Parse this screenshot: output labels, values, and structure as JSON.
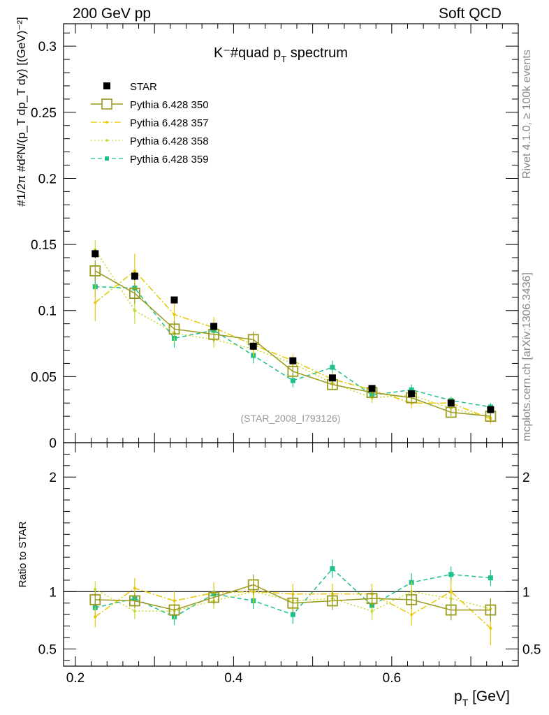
{
  "header": {
    "left": "200 GeV pp",
    "right": "Soft QCD"
  },
  "side": {
    "rivet": "Rivet 4.1.0, ≥ 100k events",
    "mcplots": "mcplots.cern.ch [arXiv:1306.3436]"
  },
  "chart_data": {
    "type": "scatter",
    "title": "K⁻#quad p",
    "title_sub": "T",
    "title_end": " spectrum",
    "watermark": "(STAR_2008_I793126)",
    "ylabel_upper": "#1/2π #d²N/(p_T dp_T dy) [(GeV)⁻²]",
    "ylabel_lower": "Ratio to STAR",
    "xlabel": "p",
    "xlabel_sub": "T",
    "xlabel_end": " [GeV]",
    "xlim": [
      0.185,
      0.76
    ],
    "ylim_upper": [
      0,
      0.317
    ],
    "ylim_lower": [
      0.35,
      2.3
    ],
    "x_ticks": [
      "0.2",
      "0.4",
      "0.6"
    ],
    "y_ticks_upper": [
      "0",
      "0.05",
      "0.1",
      "0.15",
      "0.2",
      "0.25",
      "0.3"
    ],
    "y_ticks_lower": [
      "0.5",
      "1",
      "2"
    ],
    "x": [
      0.225,
      0.275,
      0.325,
      0.375,
      0.425,
      0.475,
      0.525,
      0.575,
      0.625,
      0.675,
      0.725
    ],
    "star": {
      "name": "STAR",
      "color": "#000000",
      "values": [
        0.143,
        0.126,
        0.108,
        0.088,
        0.073,
        0.062,
        0.049,
        0.041,
        0.037,
        0.03,
        0.025
      ],
      "errors": [
        0.003,
        0.003,
        0.002,
        0.002,
        0.002,
        0.002,
        0.002,
        0.002,
        0.001,
        0.001,
        0.001
      ]
    },
    "series": [
      {
        "name": "Pythia 6.428 350",
        "color": "#9a9a1e",
        "dash": "",
        "marker": "open-square",
        "values": [
          0.13,
          0.113,
          0.086,
          0.082,
          0.078,
          0.054,
          0.044,
          0.038,
          0.034,
          0.023,
          0.02
        ],
        "errors": [
          0.008,
          0.008,
          0.006,
          0.006,
          0.006,
          0.005,
          0.004,
          0.003,
          0.003,
          0.003,
          0.003
        ],
        "ratio": [
          0.93,
          0.92,
          0.84,
          0.95,
          1.06,
          0.9,
          0.92,
          0.94,
          0.93,
          0.84,
          0.84
        ],
        "ratio_err": [
          0.06,
          0.06,
          0.05,
          0.06,
          0.09,
          0.08,
          0.08,
          0.08,
          0.08,
          0.09,
          0.1
        ]
      },
      {
        "name": "Pythia 6.428 357",
        "color": "#e6c800",
        "dash": "9,3,2,3",
        "marker": "small-dot",
        "values": [
          0.106,
          0.13,
          0.097,
          0.087,
          0.074,
          0.062,
          0.048,
          0.04,
          0.03,
          0.03,
          0.018
        ],
        "errors": [
          0.014,
          0.013,
          0.009,
          0.008,
          0.008,
          0.005,
          0.005,
          0.004,
          0.004,
          0.004,
          0.004
        ],
        "ratio": [
          0.78,
          1.03,
          0.92,
          0.99,
          1.0,
          0.98,
          0.98,
          0.98,
          0.8,
          1.0,
          0.68
        ],
        "ratio_err": [
          0.09,
          0.09,
          0.08,
          0.09,
          0.1,
          0.09,
          0.09,
          0.09,
          0.1,
          0.11,
          0.15
        ]
      },
      {
        "name": "Pythia 6.428 358",
        "color": "#c9d82a",
        "dash": "2,3",
        "marker": "small-dot",
        "values": [
          0.146,
          0.1,
          0.083,
          0.078,
          0.071,
          0.06,
          0.045,
          0.034,
          0.036,
          0.026,
          0.019
        ],
        "errors": [
          0.007,
          0.01,
          0.007,
          0.006,
          0.006,
          0.005,
          0.004,
          0.004,
          0.003,
          0.003,
          0.003
        ],
        "ratio": [
          1.02,
          0.83,
          0.83,
          0.92,
          1.0,
          0.92,
          0.94,
          0.83,
          1.0,
          0.94,
          0.85
        ],
        "ratio_err": [
          0.07,
          0.07,
          0.07,
          0.07,
          0.08,
          0.08,
          0.08,
          0.08,
          0.09,
          0.09,
          0.09
        ]
      },
      {
        "name": "Pythia 6.428 359",
        "color": "#1ec08a",
        "dash": "6,4",
        "marker": "small-square",
        "values": [
          0.118,
          0.117,
          0.079,
          0.085,
          0.066,
          0.047,
          0.057,
          0.036,
          0.04,
          0.032,
          0.027
        ],
        "errors": [
          0.008,
          0.008,
          0.007,
          0.006,
          0.006,
          0.005,
          0.005,
          0.004,
          0.004,
          0.003,
          0.003
        ],
        "ratio": [
          0.86,
          0.94,
          0.78,
          0.98,
          0.92,
          0.8,
          1.2,
          0.88,
          1.08,
          1.15,
          1.12
        ],
        "ratio_err": [
          0.07,
          0.07,
          0.07,
          0.07,
          0.07,
          0.08,
          0.08,
          0.08,
          0.08,
          0.07,
          0.07
        ]
      }
    ]
  }
}
